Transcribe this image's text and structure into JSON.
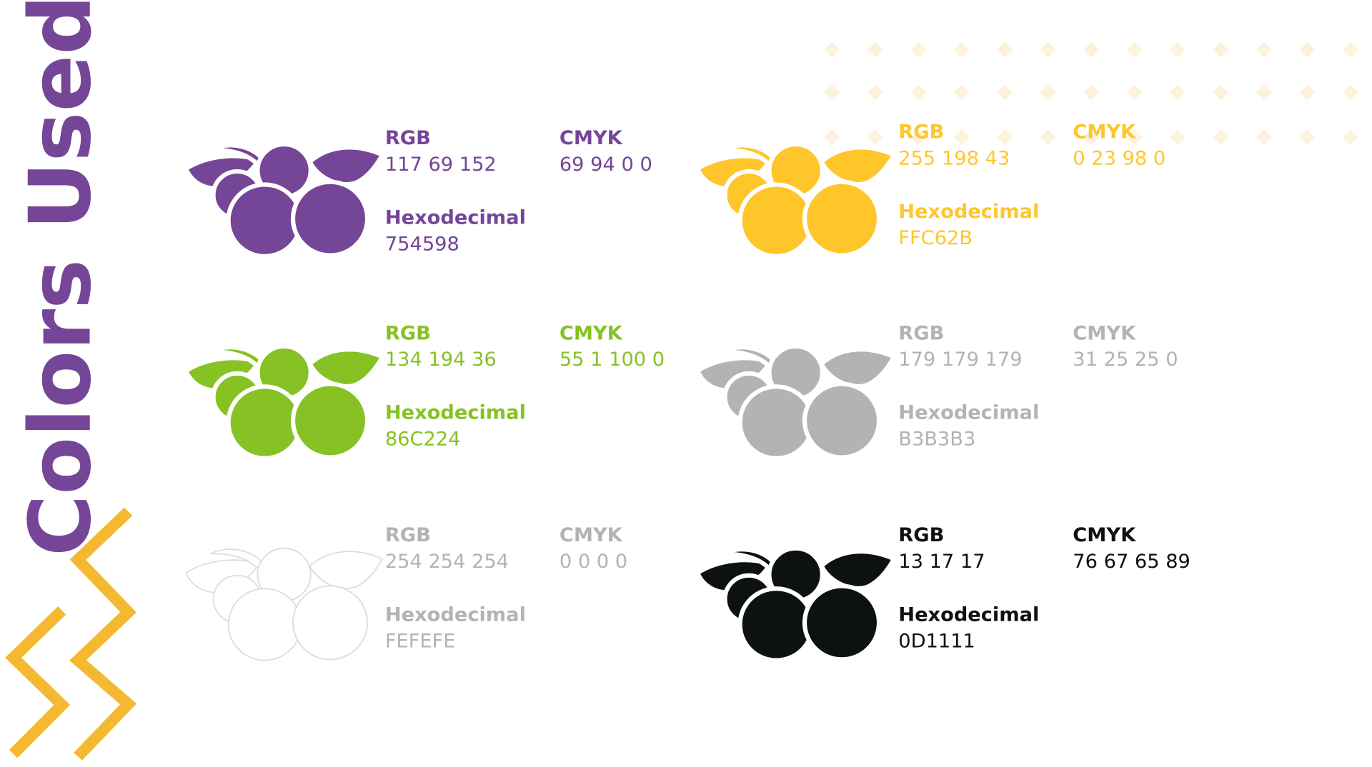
{
  "header": {
    "title": "Colors Used"
  },
  "swatches": [
    {
      "color": "#754598",
      "rgb_label": "RGB",
      "rgb": "117 69 152",
      "cmyk_label": "CMYK",
      "cmyk": "69 94 0 0",
      "hex_label": "Hexodecimal",
      "hex": "754598"
    },
    {
      "color": "#FFC62B",
      "rgb_label": "RGB",
      "rgb": "255 198 43",
      "cmyk_label": "CMYK",
      "cmyk": "0 23 98 0",
      "hex_label": "Hexodecimal",
      "hex": "FFC62B"
    },
    {
      "color": "#86C224",
      "rgb_label": "RGB",
      "rgb": "134 194 36",
      "cmyk_label": "CMYK",
      "cmyk": "55 1 100 0",
      "hex_label": "Hexodecimal",
      "hex": "86C224"
    },
    {
      "color": "#B3B3B3",
      "rgb_label": "RGB",
      "rgb": "179 179 179",
      "cmyk_label": "CMYK",
      "cmyk": "31 25 25 0",
      "hex_label": "Hexodecimal",
      "hex": "B3B3B3"
    },
    {
      "color": "#FEFEFE",
      "style": "outline",
      "text_color": "#B3B3B3",
      "rgb_label": "RGB",
      "rgb": "254 254 254",
      "cmyk_label": "CMYK",
      "cmyk": "0 0 0 0",
      "hex_label": "Hexodecimal",
      "hex": "FEFEFE"
    },
    {
      "color": "#0D1111",
      "rgb_label": "RGB",
      "rgb": "13 17 17",
      "cmyk_label": "CMYK",
      "cmyk": "76 67 65 89",
      "hex_label": "Hexodecimal",
      "hex": "0D1111"
    }
  ]
}
